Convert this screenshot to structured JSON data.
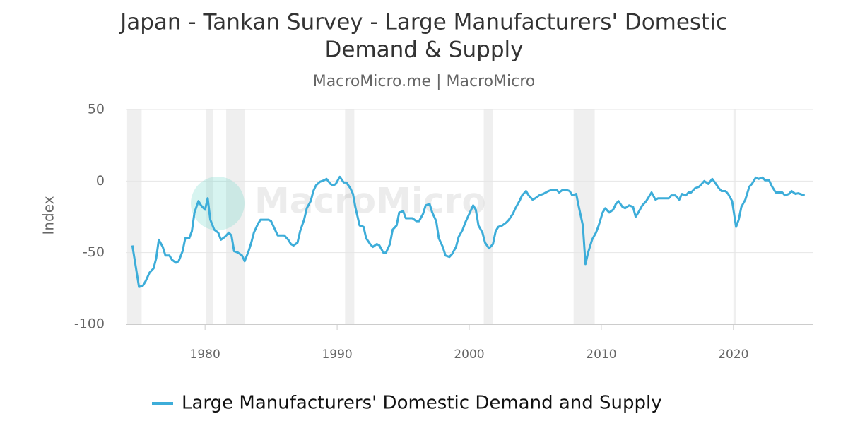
{
  "chart_data": {
    "type": "line",
    "title_lines": [
      "Japan - Tankan Survey - Large Manufacturers' Domestic",
      "Demand & Supply"
    ],
    "subtitle": "MacroMicro.me | MacroMicro",
    "watermark": "MacroMicro",
    "ylabel": "Index",
    "xlim": [
      1974,
      2026
    ],
    "xticks": [
      1980,
      1990,
      2000,
      2010,
      2020
    ],
    "ylim": [
      -100,
      50
    ],
    "yticks": [
      -100,
      -50,
      0,
      50
    ],
    "grid": true,
    "legend": "bottom",
    "shaded_periods": [
      [
        1974.1,
        1975.2
      ],
      [
        1980.1,
        1980.6
      ],
      [
        1981.6,
        1983.0
      ],
      [
        1990.6,
        1991.3
      ],
      [
        2001.1,
        2001.8
      ],
      [
        2007.9,
        2009.5
      ],
      [
        2020.0,
        2020.2
      ]
    ],
    "x": [
      1974.5,
      1975.0,
      1975.3,
      1975.5,
      1975.8,
      1976.1,
      1976.3,
      1976.5,
      1976.8,
      1977.0,
      1977.3,
      1977.5,
      1977.8,
      1978.0,
      1978.3,
      1978.5,
      1978.8,
      1979.0,
      1979.2,
      1979.5,
      1979.7,
      1980.0,
      1980.2,
      1980.4,
      1980.7,
      1981.0,
      1981.2,
      1981.5,
      1981.8,
      1982.0,
      1982.2,
      1982.5,
      1982.8,
      1983.0,
      1983.3,
      1983.5,
      1983.7,
      1984.0,
      1984.2,
      1984.5,
      1984.8,
      1985.0,
      1985.2,
      1985.5,
      1985.7,
      1986.0,
      1986.3,
      1986.5,
      1986.7,
      1987.0,
      1987.2,
      1987.5,
      1987.7,
      1988.0,
      1988.2,
      1988.4,
      1988.7,
      1989.0,
      1989.2,
      1989.5,
      1989.7,
      1989.9,
      1990.2,
      1990.5,
      1990.7,
      1991.0,
      1991.2,
      1991.4,
      1991.7,
      1992.0,
      1992.2,
      1992.5,
      1992.7,
      1993.0,
      1993.2,
      1993.5,
      1993.7,
      1994.0,
      1994.2,
      1994.5,
      1994.7,
      1995.0,
      1995.2,
      1995.5,
      1995.7,
      1996.0,
      1996.2,
      1996.5,
      1996.7,
      1997.0,
      1997.2,
      1997.5,
      1997.7,
      1998.0,
      1998.2,
      1998.5,
      1998.7,
      1999.0,
      1999.2,
      1999.5,
      1999.7,
      2000.0,
      2000.3,
      2000.5,
      2000.7,
      2001.0,
      2001.2,
      2001.5,
      2001.8,
      2002.0,
      2002.2,
      2002.5,
      2002.8,
      2003.0,
      2003.3,
      2003.5,
      2003.8,
      2004.0,
      2004.3,
      2004.5,
      2004.8,
      2005.0,
      2005.3,
      2005.6,
      2005.8,
      2006.0,
      2006.3,
      2006.6,
      2006.8,
      2007.1,
      2007.3,
      2007.6,
      2007.8,
      2008.1,
      2008.3,
      2008.6,
      2008.8,
      2009.0,
      2009.3,
      2009.6,
      2009.8,
      2010.1,
      2010.3,
      2010.6,
      2010.9,
      2011.1,
      2011.3,
      2011.6,
      2011.8,
      2012.1,
      2012.4,
      2012.6,
      2012.8,
      2013.1,
      2013.4,
      2013.6,
      2013.8,
      2014.1,
      2014.3,
      2014.6,
      2014.9,
      2015.1,
      2015.3,
      2015.6,
      2015.9,
      2016.1,
      2016.4,
      2016.6,
      2016.8,
      2017.1,
      2017.4,
      2017.6,
      2017.8,
      2018.1,
      2018.4,
      2018.6,
      2018.9,
      2019.1,
      2019.4,
      2019.6,
      2019.9,
      2020.2,
      2020.4,
      2020.6,
      2020.9,
      2021.2,
      2021.4,
      2021.7,
      2021.9,
      2022.2,
      2022.4,
      2022.7,
      2022.9,
      2023.2,
      2023.4,
      2023.7,
      2023.9,
      2024.2,
      2024.4,
      2024.7,
      2024.9,
      2025.2,
      2025.4
    ],
    "series": [
      {
        "name": "Large Manufacturers' Domestic Demand and Supply",
        "color": "#3dadd9",
        "values": [
          -45,
          -74,
          -73,
          -70,
          -64,
          -61,
          -54,
          -41,
          -46,
          -52,
          -52,
          -55,
          -57,
          -56,
          -49,
          -40,
          -40,
          -35,
          -22,
          -14,
          -17,
          -20,
          -12,
          -27,
          -34,
          -36,
          -41,
          -39,
          -36,
          -38,
          -49,
          -50,
          -52,
          -56,
          -49,
          -43,
          -36,
          -30,
          -27,
          -27,
          -27,
          -28,
          -32,
          -38,
          -38,
          -38,
          -41,
          -44,
          -45,
          -43,
          -35,
          -27,
          -19,
          -14,
          -7,
          -3,
          -0.5,
          0.5,
          1.5,
          -2,
          -3,
          -2,
          3,
          -1,
          -1,
          -5,
          -9,
          -19,
          -31,
          -32,
          -40,
          -44,
          -46,
          -44,
          -45,
          -50,
          -50,
          -44,
          -34,
          -31,
          -22,
          -21,
          -26,
          -26,
          -26,
          -28,
          -28,
          -23,
          -17,
          -16,
          -22,
          -28,
          -40,
          -46,
          -52,
          -53,
          -51,
          -46,
          -39,
          -34,
          -29,
          -23,
          -17,
          -20,
          -31,
          -36,
          -43,
          -47,
          -44,
          -35,
          -32,
          -31,
          -29,
          -27,
          -23,
          -19,
          -14,
          -10,
          -7,
          -10,
          -13,
          -12,
          -10,
          -9,
          -8,
          -7,
          -6,
          -6,
          -8,
          -6,
          -6,
          -7,
          -10,
          -9,
          -18,
          -31,
          -58,
          -50,
          -41,
          -36,
          -31,
          -22,
          -19,
          -22,
          -20,
          -16,
          -14,
          -18,
          -19,
          -17,
          -18,
          -25,
          -22,
          -17,
          -14,
          -11,
          -8,
          -13,
          -12,
          -12,
          -12,
          -12,
          -10,
          -10,
          -13,
          -9,
          -10,
          -8,
          -8,
          -5,
          -4,
          -2,
          0,
          -2,
          1.5,
          -1,
          -5,
          -7,
          -7,
          -9,
          -14,
          -32,
          -27,
          -18,
          -13,
          -4,
          -2,
          2.5,
          1.5,
          2.5,
          0.5,
          0.5,
          -3.5,
          -8,
          -8,
          -8,
          -10,
          -9,
          -7,
          -9,
          -8.5,
          -9.5,
          -9.5
        ]
      }
    ]
  }
}
